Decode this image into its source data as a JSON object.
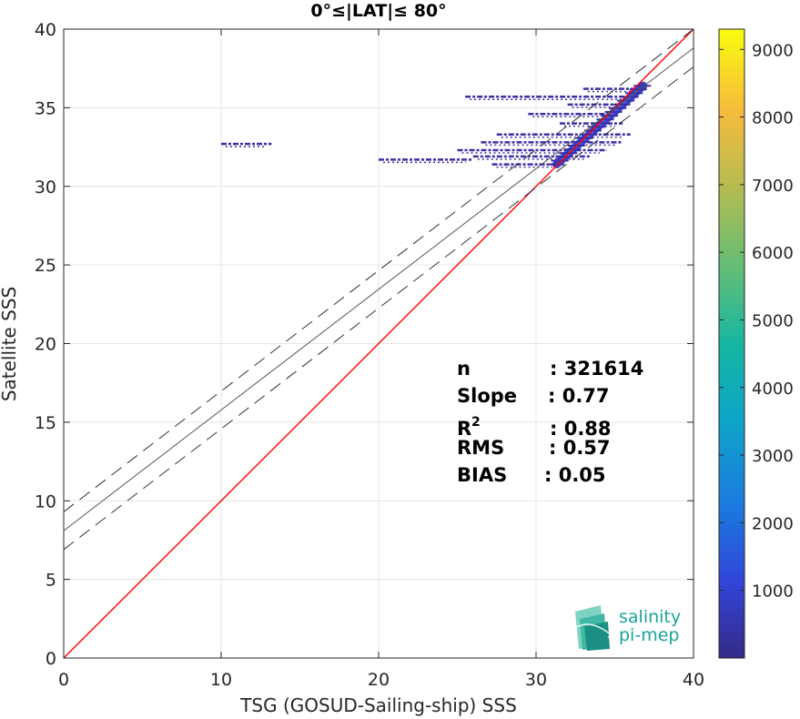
{
  "chart_data": {
    "type": "heatmap",
    "title": "0°≤|LAT|≤ 80°",
    "xlabel": "TSG (GOSUD-Sailing-ship) SSS",
    "ylabel": "Satellite SSS",
    "xlim": [
      0,
      40
    ],
    "ylim": [
      0,
      40
    ],
    "xticks": [
      "0",
      "10",
      "20",
      "30",
      "40"
    ],
    "yticks": [
      "0",
      "5",
      "10",
      "15",
      "20",
      "25",
      "30",
      "35",
      "40"
    ],
    "grid": true,
    "lines": {
      "identity": {
        "x": [
          0,
          40
        ],
        "y": [
          0,
          40
        ],
        "color": "#ff0000"
      },
      "regression": {
        "x": [
          0,
          40
        ],
        "y": [
          8.1,
          38.8
        ],
        "color": "#555555"
      },
      "upper_bound": {
        "x": [
          0,
          40
        ],
        "y": [
          9.3,
          40.0
        ],
        "color": "#333333",
        "dash": true
      },
      "lower_bound": {
        "x": [
          0,
          40
        ],
        "y": [
          6.9,
          37.6
        ],
        "color": "#333333",
        "dash": true
      }
    },
    "density": {
      "color": "#3a2fa8",
      "segments": [
        {
          "x1": 10.0,
          "x2": 13.2,
          "y": 32.7
        },
        {
          "x1": 20.0,
          "x2": 26.0,
          "y": 31.7
        },
        {
          "x1": 25.5,
          "x2": 36.5,
          "y": 35.7
        },
        {
          "x1": 27.5,
          "x2": 36.0,
          "y": 33.3
        },
        {
          "x1": 26.5,
          "x2": 35.5,
          "y": 32.8
        },
        {
          "x1": 25.0,
          "x2": 34.5,
          "y": 32.3
        },
        {
          "x1": 26.0,
          "x2": 33.5,
          "y": 31.9
        },
        {
          "x1": 27.2,
          "x2": 31.5,
          "y": 31.4
        },
        {
          "x1": 29.5,
          "x2": 34.5,
          "y": 34.6
        },
        {
          "x1": 31.5,
          "x2": 35.5,
          "y": 34.0
        },
        {
          "x1": 33.0,
          "x2": 36.8,
          "y": 36.2
        },
        {
          "x1": 32.0,
          "x2": 35.5,
          "y": 35.2
        }
      ],
      "diagonal_band": {
        "x1": 31.3,
        "y1": 31.4,
        "x2": 36.8,
        "y2": 36.4
      }
    },
    "stats": [
      {
        "label": "n",
        "value": ": 321614"
      },
      {
        "label": "Slope",
        "value": ": 0.77"
      },
      {
        "label": "R",
        "sup": "2",
        "value": ": 0.88"
      },
      {
        "label": "RMS",
        "value": ": 0.57"
      },
      {
        "label": "BIAS",
        "value": ": 0.05"
      }
    ],
    "colorbar": {
      "min": 0,
      "max": 9300,
      "ticks": [
        "1000",
        "2000",
        "3000",
        "4000",
        "5000",
        "6000",
        "7000",
        "8000",
        "9000"
      ],
      "colormap": "parula"
    }
  },
  "logo": {
    "line1": "salinity",
    "line2": "pi-mep"
  }
}
